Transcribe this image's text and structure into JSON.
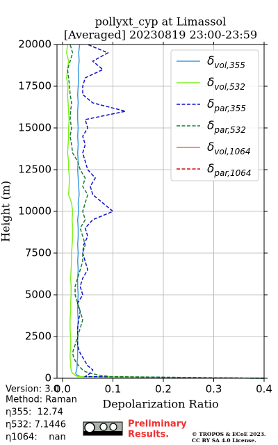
{
  "chart_data": {
    "type": "line",
    "title": "pollyxt_cyp at Limassol",
    "subtitle": "[Averaged] 20230819 23:00-23:59",
    "x_label": "Depolarization Ratio",
    "y_label": "Height (m)",
    "xlim": [
      -0.011,
      0.4
    ],
    "xticks": [
      {
        "value": 0,
        "label": "0.0"
      },
      0.1,
      0.2,
      0.3,
      0.4
    ],
    "ylim": [
      0,
      20000
    ],
    "yticks": [
      0,
      2500,
      5000,
      7500,
      10000,
      12500,
      15000,
      17500,
      20000
    ],
    "grid": true,
    "legend": "upper right",
    "heights": [
      0,
      100,
      200,
      300,
      400,
      500,
      750,
      1000,
      1250,
      1500,
      1750,
      2000,
      2500,
      3000,
      3500,
      4000,
      4500,
      5000,
      5500,
      6000,
      6500,
      7000,
      7500,
      8000,
      8500,
      9000,
      9500,
      10000,
      10500,
      11000,
      11500,
      12000,
      12500,
      13000,
      13500,
      14000,
      14500,
      15000,
      15500,
      16000,
      16500,
      17000,
      17500,
      18000,
      18500,
      19000,
      19500,
      20000
    ],
    "series": [
      {
        "name": "δ",
        "subscript": "vol,355",
        "color": "#3d9be0",
        "linestyle": "solid",
        "values": [
          0.4,
          0.035,
          0.028,
          0.026,
          0.027,
          0.028,
          0.029,
          0.029,
          0.03,
          0.03,
          0.03,
          0.03,
          0.03,
          0.03,
          0.031,
          0.03,
          0.03,
          0.031,
          0.03,
          0.03,
          0.031,
          0.03,
          0.031,
          0.03,
          0.031,
          0.031,
          0.03,
          0.032,
          0.031,
          0.033,
          0.032,
          0.031,
          0.03,
          0.031,
          0.03,
          0.031,
          0.03,
          0.031,
          0.03,
          0.03,
          0.031,
          0.03,
          0.031,
          0.032,
          0.031,
          0.033,
          0.032,
          0.034
        ]
      },
      {
        "name": "δ",
        "subscript": "vol,532",
        "color": "#80f020",
        "linestyle": "solid",
        "values": [
          0.4,
          0.03,
          0.024,
          0.02,
          0.018,
          0.017,
          0.016,
          0.016,
          0.015,
          0.015,
          0.016,
          0.016,
          0.016,
          0.015,
          0.015,
          0.016,
          0.016,
          0.017,
          0.017,
          0.016,
          0.017,
          0.018,
          0.018,
          0.019,
          0.02,
          0.02,
          0.019,
          0.02,
          0.018,
          0.012,
          0.013,
          0.014,
          0.012,
          0.012,
          0.01,
          0.011,
          0.012,
          0.012,
          0.013,
          0.012,
          0.011,
          0.01,
          0.011,
          0.008,
          0.01,
          0.012,
          0.008,
          0.01
        ]
      },
      {
        "name": "δ",
        "subscript": "par,355",
        "color": "#1010c8",
        "linestyle": "dashed",
        "values": [
          0.4,
          0.045,
          0.05,
          0.055,
          0.058,
          0.06,
          0.05,
          0.045,
          0.04,
          0.035,
          0.032,
          0.03,
          0.03,
          0.03,
          0.032,
          0.035,
          0.03,
          0.04,
          0.035,
          0.04,
          0.05,
          0.045,
          0.04,
          0.042,
          0.05,
          0.045,
          0.06,
          0.1,
          0.08,
          0.06,
          0.055,
          0.065,
          0.05,
          0.045,
          0.04,
          0.045,
          0.04,
          0.05,
          0.045,
          0.125,
          0.06,
          0.04,
          0.04,
          0.045,
          0.08,
          0.06,
          0.09,
          0.05
        ]
      },
      {
        "name": "δ",
        "subscript": "par,532",
        "color": "#1a7a3a",
        "linestyle": "dashed",
        "values": [
          0.4,
          0.095,
          0.07,
          0.055,
          0.045,
          0.04,
          0.032,
          0.026,
          0.022,
          0.02,
          0.022,
          0.025,
          0.03,
          0.035,
          0.04,
          0.035,
          0.03,
          0.025,
          0.025,
          0.03,
          0.035,
          0.04,
          0.04,
          0.045,
          0.04,
          0.035,
          0.045,
          0.04,
          0.045,
          0.05,
          0.04,
          0.045,
          0.035,
          0.03,
          0.02,
          0.018,
          0.015,
          0.018,
          0.015,
          0.016,
          0.018,
          0.015,
          0.014,
          0.012,
          0.01,
          0.015,
          0.02,
          0.015
        ]
      },
      {
        "name": "δ",
        "subscript": "vol,1064",
        "color": "#f46a50",
        "linestyle": "solid",
        "values": [
          null,
          null,
          null,
          null,
          null,
          null,
          null,
          null,
          null,
          null,
          null,
          null,
          null,
          null,
          null,
          null,
          null,
          null,
          null,
          null,
          null,
          null,
          null,
          null,
          null,
          null,
          null,
          null,
          null,
          null,
          null,
          null,
          null,
          null,
          null,
          null,
          null,
          null,
          null,
          null,
          null,
          null,
          null,
          null,
          null,
          null,
          null,
          null
        ]
      },
      {
        "name": "δ",
        "subscript": "par,1064",
        "color": "#cc1010",
        "linestyle": "dashed",
        "values": [
          null,
          null,
          null,
          null,
          null,
          null,
          null,
          null,
          null,
          null,
          null,
          null,
          null,
          null,
          null,
          null,
          null,
          null,
          null,
          null,
          null,
          null,
          null,
          null,
          null,
          null,
          null,
          null,
          null,
          null,
          null,
          null,
          null,
          null,
          null,
          null,
          null,
          null,
          null,
          null,
          null,
          null,
          null,
          null,
          null,
          null,
          null,
          null
        ]
      }
    ]
  },
  "info": {
    "version": "Version: 3.0",
    "method": "Method: Raman",
    "eta355": "η355:  12.74",
    "eta532": "η532: 7.1446",
    "eta1064": "η1064:    nan"
  },
  "notice": {
    "preliminary": [
      "Preliminary",
      "Results."
    ],
    "copyright": [
      "© TROPOS & ECoE 2023.",
      "CC BY SA 4.0 License."
    ]
  }
}
